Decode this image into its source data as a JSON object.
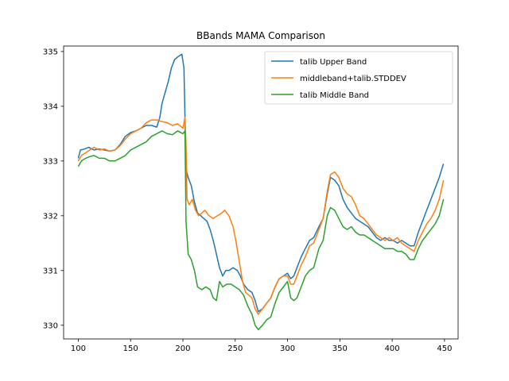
{
  "chart_data": {
    "type": "line",
    "title": "BBands MAMA Comparison",
    "xlabel": "",
    "ylabel": "",
    "xlim": [
      86,
      463
    ],
    "ylim": [
      329.75,
      335.1
    ],
    "xticks": [
      100,
      150,
      200,
      250,
      300,
      350,
      400,
      450
    ],
    "yticks": [
      330,
      331,
      332,
      333,
      334,
      335
    ],
    "grid": false,
    "legend_position": "top-right",
    "series": [
      {
        "name": "talib Upper Band",
        "color": "#1f77b4",
        "points": [
          [
            100,
            333.05
          ],
          [
            102,
            333.2
          ],
          [
            106,
            333.22
          ],
          [
            110,
            333.25
          ],
          [
            115,
            333.2
          ],
          [
            120,
            333.22
          ],
          [
            125,
            333.2
          ],
          [
            130,
            333.18
          ],
          [
            135,
            333.2
          ],
          [
            140,
            333.3
          ],
          [
            145,
            333.45
          ],
          [
            150,
            333.52
          ],
          [
            155,
            333.55
          ],
          [
            160,
            333.6
          ],
          [
            165,
            333.65
          ],
          [
            170,
            333.65
          ],
          [
            175,
            333.62
          ],
          [
            178,
            333.8
          ],
          [
            180,
            334.05
          ],
          [
            183,
            334.25
          ],
          [
            186,
            334.45
          ],
          [
            189,
            334.7
          ],
          [
            192,
            334.85
          ],
          [
            195,
            334.9
          ],
          [
            199,
            334.95
          ],
          [
            201,
            334.7
          ],
          [
            202,
            333.8
          ],
          [
            203,
            332.85
          ],
          [
            205,
            332.7
          ],
          [
            208,
            332.55
          ],
          [
            211,
            332.25
          ],
          [
            214,
            332.05
          ],
          [
            217,
            332.0
          ],
          [
            220,
            331.95
          ],
          [
            223,
            331.9
          ],
          [
            226,
            331.75
          ],
          [
            229,
            331.55
          ],
          [
            232,
            331.3
          ],
          [
            235,
            331.05
          ],
          [
            238,
            330.9
          ],
          [
            241,
            331.0
          ],
          [
            244,
            331.0
          ],
          [
            248,
            331.05
          ],
          [
            252,
            331.0
          ],
          [
            255,
            330.9
          ],
          [
            258,
            330.75
          ],
          [
            262,
            330.65
          ],
          [
            266,
            330.6
          ],
          [
            269,
            330.45
          ],
          [
            272,
            330.25
          ],
          [
            276,
            330.3
          ],
          [
            280,
            330.4
          ],
          [
            284,
            330.5
          ],
          [
            288,
            330.7
          ],
          [
            292,
            330.85
          ],
          [
            296,
            330.9
          ],
          [
            300,
            330.95
          ],
          [
            303,
            330.85
          ],
          [
            306,
            330.9
          ],
          [
            309,
            331.05
          ],
          [
            313,
            331.25
          ],
          [
            317,
            331.4
          ],
          [
            321,
            331.55
          ],
          [
            325,
            331.6
          ],
          [
            330,
            331.8
          ],
          [
            334,
            331.95
          ],
          [
            338,
            332.4
          ],
          [
            341,
            332.7
          ],
          [
            345,
            332.65
          ],
          [
            349,
            332.55
          ],
          [
            353,
            332.3
          ],
          [
            357,
            332.15
          ],
          [
            361,
            332.05
          ],
          [
            365,
            331.95
          ],
          [
            369,
            331.9
          ],
          [
            373,
            331.85
          ],
          [
            377,
            331.8
          ],
          [
            381,
            331.7
          ],
          [
            385,
            331.6
          ],
          [
            389,
            331.55
          ],
          [
            393,
            331.6
          ],
          [
            397,
            331.55
          ],
          [
            401,
            331.55
          ],
          [
            405,
            331.5
          ],
          [
            409,
            331.55
          ],
          [
            413,
            331.5
          ],
          [
            417,
            331.45
          ],
          [
            421,
            331.45
          ],
          [
            425,
            331.7
          ],
          [
            429,
            331.9
          ],
          [
            433,
            332.1
          ],
          [
            437,
            332.3
          ],
          [
            441,
            332.5
          ],
          [
            445,
            332.7
          ],
          [
            449,
            332.95
          ]
        ]
      },
      {
        "name": "middleband+talib.STDDEV",
        "color": "#ff7f0e",
        "points": [
          [
            100,
            333.0
          ],
          [
            103,
            333.1
          ],
          [
            107,
            333.15
          ],
          [
            111,
            333.2
          ],
          [
            115,
            333.25
          ],
          [
            120,
            333.2
          ],
          [
            125,
            333.22
          ],
          [
            130,
            333.18
          ],
          [
            135,
            333.2
          ],
          [
            140,
            333.28
          ],
          [
            145,
            333.4
          ],
          [
            150,
            333.5
          ],
          [
            155,
            333.55
          ],
          [
            160,
            333.6
          ],
          [
            165,
            333.7
          ],
          [
            170,
            333.75
          ],
          [
            175,
            333.75
          ],
          [
            180,
            333.72
          ],
          [
            185,
            333.7
          ],
          [
            190,
            333.65
          ],
          [
            195,
            333.68
          ],
          [
            200,
            333.6
          ],
          [
            202,
            333.8
          ],
          [
            203,
            333.3
          ],
          [
            204,
            332.3
          ],
          [
            206,
            332.2
          ],
          [
            209,
            332.3
          ],
          [
            212,
            332.1
          ],
          [
            215,
            332.0
          ],
          [
            218,
            332.05
          ],
          [
            221,
            332.1
          ],
          [
            225,
            332.0
          ],
          [
            229,
            331.95
          ],
          [
            233,
            332.0
          ],
          [
            237,
            332.05
          ],
          [
            240,
            332.1
          ],
          [
            244,
            332.0
          ],
          [
            248,
            331.8
          ],
          [
            251,
            331.5
          ],
          [
            254,
            331.15
          ],
          [
            257,
            330.8
          ],
          [
            260,
            330.6
          ],
          [
            263,
            330.55
          ],
          [
            266,
            330.5
          ],
          [
            269,
            330.3
          ],
          [
            272,
            330.2
          ],
          [
            276,
            330.3
          ],
          [
            280,
            330.4
          ],
          [
            284,
            330.5
          ],
          [
            288,
            330.7
          ],
          [
            292,
            330.85
          ],
          [
            296,
            330.9
          ],
          [
            300,
            330.9
          ],
          [
            303,
            330.75
          ],
          [
            306,
            330.75
          ],
          [
            309,
            330.9
          ],
          [
            313,
            331.1
          ],
          [
            317,
            331.25
          ],
          [
            321,
            331.45
          ],
          [
            325,
            331.5
          ],
          [
            330,
            331.75
          ],
          [
            334,
            331.95
          ],
          [
            338,
            332.45
          ],
          [
            341,
            332.75
          ],
          [
            345,
            332.8
          ],
          [
            349,
            332.7
          ],
          [
            353,
            332.5
          ],
          [
            357,
            332.4
          ],
          [
            361,
            332.35
          ],
          [
            365,
            332.2
          ],
          [
            369,
            332.0
          ],
          [
            373,
            331.95
          ],
          [
            377,
            331.85
          ],
          [
            381,
            331.75
          ],
          [
            385,
            331.65
          ],
          [
            389,
            331.6
          ],
          [
            393,
            331.55
          ],
          [
            397,
            331.6
          ],
          [
            401,
            331.55
          ],
          [
            405,
            331.6
          ],
          [
            409,
            331.5
          ],
          [
            413,
            331.45
          ],
          [
            417,
            331.4
          ],
          [
            421,
            331.35
          ],
          [
            425,
            331.55
          ],
          [
            429,
            331.7
          ],
          [
            433,
            331.85
          ],
          [
            437,
            331.95
          ],
          [
            441,
            332.1
          ],
          [
            445,
            332.3
          ],
          [
            449,
            332.65
          ]
        ]
      },
      {
        "name": "talib Middle Band",
        "color": "#2ca02c",
        "points": [
          [
            100,
            332.9
          ],
          [
            103,
            333.0
          ],
          [
            107,
            333.05
          ],
          [
            111,
            333.08
          ],
          [
            115,
            333.1
          ],
          [
            120,
            333.05
          ],
          [
            125,
            333.05
          ],
          [
            130,
            333.0
          ],
          [
            135,
            333.0
          ],
          [
            140,
            333.05
          ],
          [
            145,
            333.1
          ],
          [
            150,
            333.2
          ],
          [
            155,
            333.25
          ],
          [
            160,
            333.3
          ],
          [
            165,
            333.35
          ],
          [
            170,
            333.45
          ],
          [
            175,
            333.5
          ],
          [
            180,
            333.55
          ],
          [
            185,
            333.5
          ],
          [
            190,
            333.48
          ],
          [
            195,
            333.55
          ],
          [
            200,
            333.5
          ],
          [
            202,
            333.55
          ],
          [
            203,
            331.9
          ],
          [
            205,
            331.3
          ],
          [
            208,
            331.2
          ],
          [
            211,
            331.0
          ],
          [
            214,
            330.7
          ],
          [
            218,
            330.65
          ],
          [
            222,
            330.7
          ],
          [
            226,
            330.65
          ],
          [
            229,
            330.5
          ],
          [
            232,
            330.45
          ],
          [
            235,
            330.8
          ],
          [
            238,
            330.7
          ],
          [
            242,
            330.75
          ],
          [
            246,
            330.75
          ],
          [
            250,
            330.7
          ],
          [
            254,
            330.65
          ],
          [
            258,
            330.55
          ],
          [
            262,
            330.35
          ],
          [
            266,
            330.2
          ],
          [
            269,
            330.0
          ],
          [
            272,
            329.92
          ],
          [
            276,
            330.0
          ],
          [
            280,
            330.1
          ],
          [
            284,
            330.15
          ],
          [
            288,
            330.4
          ],
          [
            292,
            330.6
          ],
          [
            296,
            330.7
          ],
          [
            300,
            330.8
          ],
          [
            303,
            330.5
          ],
          [
            306,
            330.45
          ],
          [
            309,
            330.5
          ],
          [
            313,
            330.7
          ],
          [
            317,
            330.9
          ],
          [
            321,
            331.0
          ],
          [
            325,
            331.05
          ],
          [
            330,
            331.4
          ],
          [
            334,
            331.55
          ],
          [
            338,
            332.0
          ],
          [
            341,
            332.15
          ],
          [
            345,
            332.1
          ],
          [
            349,
            331.95
          ],
          [
            353,
            331.8
          ],
          [
            357,
            331.75
          ],
          [
            361,
            331.8
          ],
          [
            365,
            331.7
          ],
          [
            369,
            331.65
          ],
          [
            373,
            331.65
          ],
          [
            377,
            331.6
          ],
          [
            381,
            331.55
          ],
          [
            385,
            331.5
          ],
          [
            389,
            331.45
          ],
          [
            393,
            331.4
          ],
          [
            397,
            331.4
          ],
          [
            401,
            331.4
          ],
          [
            405,
            331.35
          ],
          [
            409,
            331.35
          ],
          [
            413,
            331.3
          ],
          [
            417,
            331.2
          ],
          [
            421,
            331.2
          ],
          [
            425,
            331.4
          ],
          [
            429,
            331.55
          ],
          [
            433,
            331.65
          ],
          [
            437,
            331.75
          ],
          [
            441,
            331.85
          ],
          [
            445,
            332.0
          ],
          [
            449,
            332.3
          ]
        ]
      }
    ]
  }
}
